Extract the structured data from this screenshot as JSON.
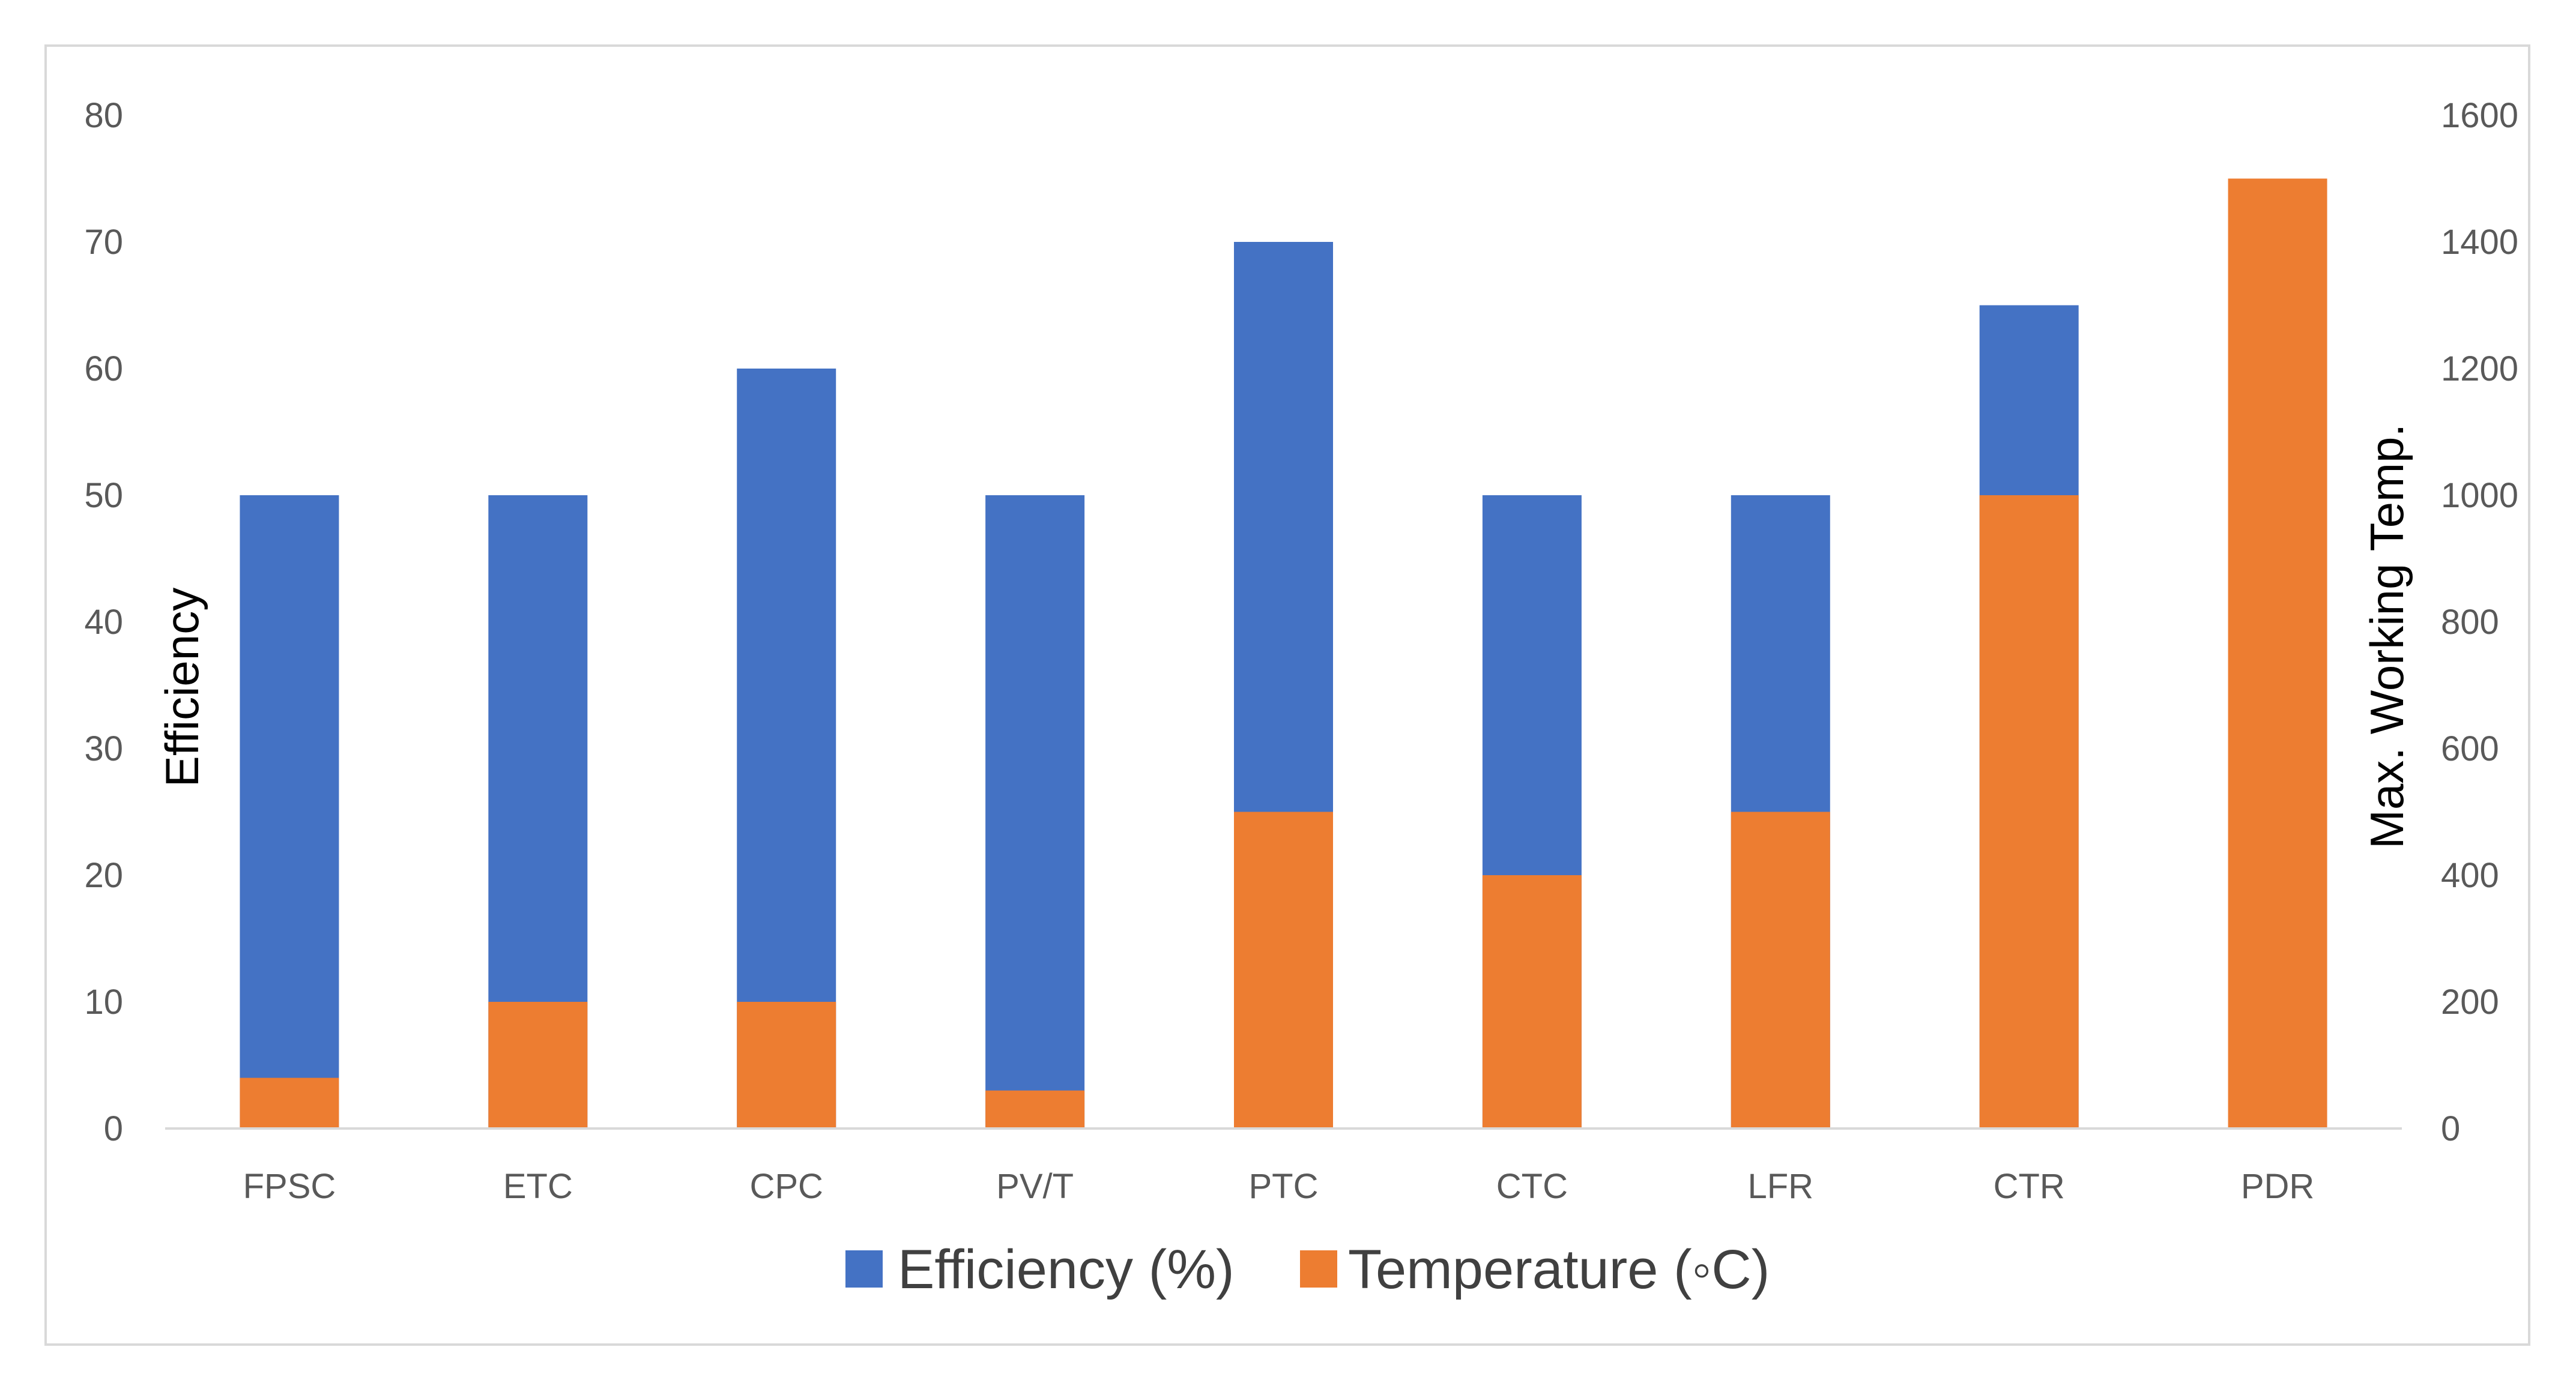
{
  "chart_data": {
    "type": "bar",
    "categories": [
      "FPSC",
      "ETC",
      "CPC",
      "PV/T",
      "PTC",
      "CTC",
      "LFR",
      "CTR",
      "PDR"
    ],
    "series": [
      {
        "name": "Efficiency (%)",
        "axis": "left",
        "color": "#4472c4",
        "values": [
          50,
          50,
          60,
          50,
          70,
          50,
          50,
          65,
          null
        ]
      },
      {
        "name": "Temperature (◦C)",
        "axis": "right",
        "color": "#ed7d31",
        "values": [
          80,
          200,
          200,
          60,
          500,
          400,
          500,
          1000,
          1500
        ]
      }
    ],
    "ylabel": "Efficiency",
    "y2label": "Max. Working Temp.",
    "ylim": [
      0,
      80
    ],
    "y2lim": [
      0,
      1600
    ],
    "yticks": [
      "0",
      "10",
      "20",
      "30",
      "40",
      "50",
      "60",
      "70",
      "80"
    ],
    "y2ticks": [
      "0",
      "200",
      "400",
      "600",
      "800",
      "1000",
      "1200",
      "1400",
      "1600"
    ],
    "grid": false,
    "legend_position": "bottom"
  }
}
